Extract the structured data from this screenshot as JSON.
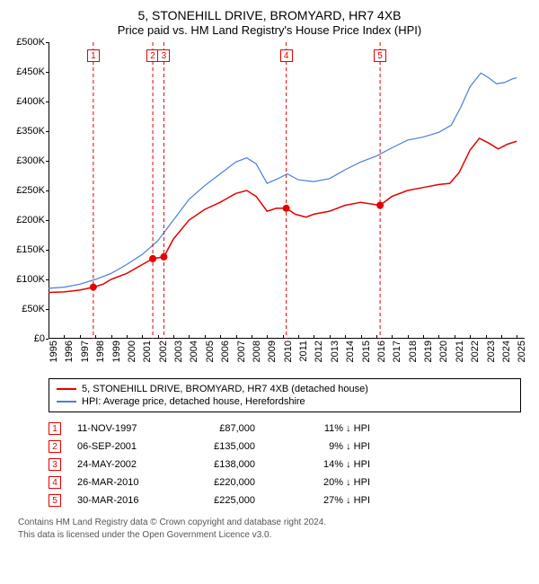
{
  "title": {
    "line1": "5, STONEHILL DRIVE, BROMYARD, HR7 4XB",
    "line2": "Price paid vs. HM Land Registry's House Price Index (HPI)"
  },
  "chart": {
    "type": "line",
    "background_color": "#ffffff",
    "grid": false,
    "y": {
      "label_prefix": "£",
      "min": 0,
      "max": 500000,
      "tick_step": 50000,
      "ticks": [
        "£0",
        "£50K",
        "£100K",
        "£150K",
        "£200K",
        "£250K",
        "£300K",
        "£350K",
        "£400K",
        "£450K",
        "£500K"
      ],
      "axis_color": "#000000",
      "tick_fontsize": 11
    },
    "x": {
      "min": 1995,
      "max": 2025.5,
      "years": [
        1995,
        1996,
        1997,
        1998,
        1999,
        2000,
        2001,
        2002,
        2003,
        2004,
        2005,
        2006,
        2007,
        2008,
        2009,
        2010,
        2011,
        2012,
        2013,
        2014,
        2015,
        2016,
        2017,
        2018,
        2019,
        2020,
        2021,
        2022,
        2023,
        2024,
        2025
      ],
      "axis_color": "#000000",
      "tick_fontsize": 11
    },
    "series": [
      {
        "name": "property",
        "label": "5, STONEHILL DRIVE, BROMYARD, HR7 4XB (detached house)",
        "color": "#e60000",
        "line_width": 1.5,
        "points": [
          [
            1995.0,
            78000
          ],
          [
            1996.0,
            79000
          ],
          [
            1997.0,
            82000
          ],
          [
            1997.87,
            87000
          ],
          [
            1998.5,
            92000
          ],
          [
            1999.0,
            100000
          ],
          [
            2000.0,
            110000
          ],
          [
            2001.0,
            125000
          ],
          [
            2001.68,
            135000
          ],
          [
            2002.39,
            138000
          ],
          [
            2003.0,
            168000
          ],
          [
            2004.0,
            200000
          ],
          [
            2005.0,
            218000
          ],
          [
            2006.0,
            230000
          ],
          [
            2007.0,
            245000
          ],
          [
            2007.7,
            250000
          ],
          [
            2008.3,
            240000
          ],
          [
            2009.0,
            215000
          ],
          [
            2009.6,
            220000
          ],
          [
            2010.23,
            220000
          ],
          [
            2010.8,
            210000
          ],
          [
            2011.5,
            205000
          ],
          [
            2012.0,
            210000
          ],
          [
            2013.0,
            215000
          ],
          [
            2014.0,
            225000
          ],
          [
            2015.0,
            230000
          ],
          [
            2016.24,
            225000
          ],
          [
            2017.0,
            240000
          ],
          [
            2018.0,
            250000
          ],
          [
            2019.0,
            255000
          ],
          [
            2020.0,
            260000
          ],
          [
            2020.7,
            262000
          ],
          [
            2021.3,
            280000
          ],
          [
            2022.0,
            318000
          ],
          [
            2022.6,
            338000
          ],
          [
            2023.2,
            330000
          ],
          [
            2023.8,
            320000
          ],
          [
            2024.4,
            328000
          ],
          [
            2025.0,
            333000
          ]
        ]
      },
      {
        "name": "hpi",
        "label": "HPI: Average price, detached house, Herefordshire",
        "color": "#4a7fd6",
        "line_width": 1.2,
        "points": [
          [
            1995.0,
            85000
          ],
          [
            1996.0,
            87000
          ],
          [
            1997.0,
            92000
          ],
          [
            1998.0,
            100000
          ],
          [
            1999.0,
            110000
          ],
          [
            2000.0,
            125000
          ],
          [
            2001.0,
            142000
          ],
          [
            2002.0,
            165000
          ],
          [
            2003.0,
            200000
          ],
          [
            2004.0,
            235000
          ],
          [
            2005.0,
            258000
          ],
          [
            2006.0,
            278000
          ],
          [
            2007.0,
            298000
          ],
          [
            2007.7,
            305000
          ],
          [
            2008.3,
            295000
          ],
          [
            2009.0,
            262000
          ],
          [
            2009.7,
            270000
          ],
          [
            2010.3,
            278000
          ],
          [
            2011.0,
            268000
          ],
          [
            2012.0,
            265000
          ],
          [
            2013.0,
            270000
          ],
          [
            2014.0,
            285000
          ],
          [
            2015.0,
            298000
          ],
          [
            2016.0,
            308000
          ],
          [
            2017.0,
            322000
          ],
          [
            2018.0,
            335000
          ],
          [
            2019.0,
            340000
          ],
          [
            2020.0,
            348000
          ],
          [
            2020.8,
            360000
          ],
          [
            2021.4,
            390000
          ],
          [
            2022.0,
            425000
          ],
          [
            2022.7,
            448000
          ],
          [
            2023.2,
            440000
          ],
          [
            2023.7,
            430000
          ],
          [
            2024.2,
            432000
          ],
          [
            2024.7,
            438000
          ],
          [
            2025.0,
            440000
          ]
        ]
      }
    ],
    "events": [
      {
        "n": "1",
        "year": 1997.87,
        "value": 87000
      },
      {
        "n": "2",
        "year": 2001.68,
        "value": 135000
      },
      {
        "n": "3",
        "year": 2002.39,
        "value": 138000
      },
      {
        "n": "4",
        "year": 2010.23,
        "value": 220000
      },
      {
        "n": "5",
        "year": 2016.24,
        "value": 225000
      }
    ],
    "event_marker": {
      "border_color": "#e60000",
      "text_color": "#e60000",
      "fontsize": 10,
      "dash_color": "#e60000",
      "dot_fill": "#e60000",
      "dot_radius": 4
    }
  },
  "legend": {
    "border_color": "#000000",
    "fontsize": 11
  },
  "transactions": {
    "header_hidden": true,
    "col_diff_suffix": "↓ HPI",
    "rows": [
      {
        "n": "1",
        "date": "11-NOV-1997",
        "price": "£87,000",
        "diff": "11% "
      },
      {
        "n": "2",
        "date": "06-SEP-2001",
        "price": "£135,000",
        "diff": "9% "
      },
      {
        "n": "3",
        "date": "24-MAY-2002",
        "price": "£138,000",
        "diff": "14% "
      },
      {
        "n": "4",
        "date": "26-MAR-2010",
        "price": "£220,000",
        "diff": "20% "
      },
      {
        "n": "5",
        "date": "30-MAR-2016",
        "price": "£225,000",
        "diff": "27% "
      }
    ],
    "number_border_color": "#e60000",
    "number_text_color": "#e60000"
  },
  "footer": {
    "line1": "Contains HM Land Registry data © Crown copyright and database right 2024.",
    "line2": "This data is licensed under the Open Government Licence v3.0."
  }
}
